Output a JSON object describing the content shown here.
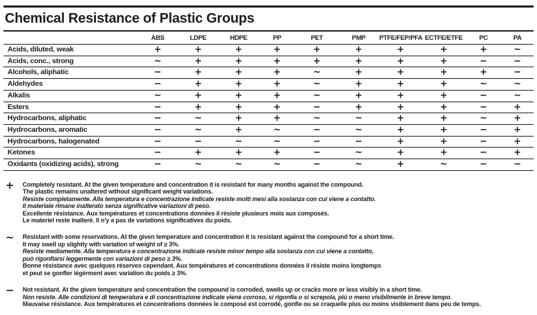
{
  "title": "Chemical Resistance of Plastic Groups",
  "table": {
    "columns": [
      "ABS",
      "LDPE",
      "HDPE",
      "PP",
      "PET",
      "PMP",
      "PTFE/FEP/PFA",
      "ECTFE/ETFE",
      "PC",
      "PA"
    ],
    "rows": [
      {
        "label": "Acids, diluted, weak",
        "values": [
          "+",
          "+",
          "+",
          "+",
          "+",
          "+",
          "+",
          "+",
          "+",
          "~"
        ]
      },
      {
        "label": "Acids, conc., strong",
        "values": [
          "~",
          "+",
          "+",
          "+",
          "+",
          "+",
          "+",
          "+",
          "−",
          "−"
        ]
      },
      {
        "label": "Alcohols, aliphatic",
        "values": [
          "−",
          "+",
          "+",
          "+",
          "~",
          "+",
          "+",
          "+",
          "+",
          "−"
        ]
      },
      {
        "label": "Aldehydes",
        "values": [
          "−",
          "+",
          "+",
          "+",
          "~",
          "+",
          "+",
          "+",
          "~",
          "~"
        ]
      },
      {
        "label": "Alkalis",
        "values": [
          "~",
          "+",
          "+",
          "+",
          "~",
          "+",
          "+",
          "+",
          "−",
          "~"
        ]
      },
      {
        "label": "Esters",
        "values": [
          "−",
          "+",
          "+",
          "+",
          "−",
          "+",
          "+",
          "+",
          "−",
          "+"
        ]
      },
      {
        "label": "Hydrocarbons, aliphatic",
        "values": [
          "−",
          "~",
          "+",
          "+",
          "~",
          "~",
          "+",
          "+",
          "~",
          "+"
        ]
      },
      {
        "label": "Hydrocarbons, aromatic",
        "values": [
          "−",
          "~",
          "+",
          "~",
          "−",
          "~",
          "+",
          "+",
          "−",
          "+"
        ]
      },
      {
        "label": "Hydrocarbons, halogenated",
        "values": [
          "−",
          "−",
          "~",
          "~",
          "−",
          "−",
          "+",
          "+",
          "−",
          "+"
        ]
      },
      {
        "label": "Ketones",
        "values": [
          "−",
          "+",
          "+",
          "+",
          "−",
          "~",
          "+",
          "+",
          "−",
          "+"
        ]
      },
      {
        "label": "Oxidants (oxidizing acids), strong",
        "values": [
          "−",
          "~",
          "~",
          "~",
          "−",
          "~",
          "+",
          "~",
          "−",
          "−"
        ]
      }
    ]
  },
  "legend": [
    {
      "name": "plus",
      "symbol": "+",
      "lines": [
        {
          "text": "Completely resistant. At the given temperature and concentration it is resistant for many months against the compound.",
          "italic": false
        },
        {
          "text": "The plastic remains unaltered without significant weight variations.",
          "italic": false
        },
        {
          "text": "Resiste completamente. Alla temperatura e concentrazione indicate resiste molti mesi alla sostanza con cui viene a contatto.",
          "italic": true
        },
        {
          "text": "Il materiale rimane inalterato senza significative variazioni di peso.",
          "italic": true
        },
        {
          "text": "Excellente résistance. Aux températures et concentrations données il résiste plusieurs mois aux composés.",
          "italic": false
        },
        {
          "text": "Le materiel reste inalteré. Il n'y a pas de variations significatives du poids.",
          "italic": false
        }
      ]
    },
    {
      "name": "tilde",
      "symbol": "~",
      "lines": [
        {
          "text": "Resistant with some reservations. At the given temperature and concentration it is resistant against the compound for a short time.",
          "italic": false
        },
        {
          "text": "It may swell up slightly with variation of weight of ≥ 3%.",
          "italic": false
        },
        {
          "text": "Resiste mediamente. Alla temperatura e concentrazione indicate resiste minor tempo alla sostanza con cui viene a contatto,",
          "italic": true
        },
        {
          "text": "può rigonfiarsi leggermente con variazioni di peso ≥ 3%.",
          "italic": true
        },
        {
          "text": "Bonne résistance avec quelques réserves cependant. Aux températures et concentrations données il résiste moins longtemps",
          "italic": false
        },
        {
          "text": "et peut se gonfler légèrment avec variation du poids ≥ 3%.",
          "italic": false
        }
      ]
    },
    {
      "name": "minus",
      "symbol": "−",
      "lines": [
        {
          "text": "Not resistant. At the given temperature and concentration the compound is corroded, swells up or cracks more or less visibly in a short time.",
          "italic": false
        },
        {
          "text": "Non resiste. Alle condizioni di temperatura e di concentrazione indicate viene corroso, si rigonfia o si screpola, più o meno visibilmente in breve tempo.",
          "italic": true
        },
        {
          "text": "Mauvaise résistance. Aux températures et concentrations données le composé est corrodé, gonfle ou se craquelle plus ou moins visiblement dans peu de temps.",
          "italic": false
        }
      ]
    }
  ],
  "colors": {
    "ink": "#1d1d1b",
    "background": "#ffffff"
  }
}
